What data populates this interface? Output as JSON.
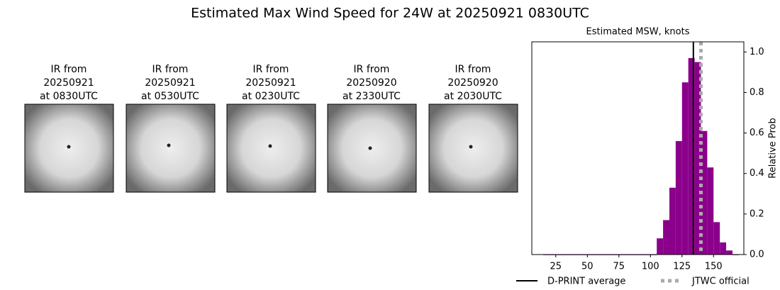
{
  "title": "Estimated Max Wind Speed for 24W at 20250921 0830UTC",
  "panels": [
    {
      "lines": [
        "IR from",
        "20250921",
        "at 0830UTC"
      ]
    },
    {
      "lines": [
        "IR from",
        "20250921",
        "at 0530UTC"
      ]
    },
    {
      "lines": [
        "IR from",
        "20250921",
        "at 0230UTC"
      ]
    },
    {
      "lines": [
        "IR from",
        "20250920",
        "at 2330UTC"
      ]
    },
    {
      "lines": [
        "IR from",
        "20250920",
        "at 2030UTC"
      ]
    }
  ],
  "chart_data": {
    "type": "histogram",
    "title": "Estimated MSW, knots",
    "y_label": "Relative Prob",
    "bins": [
      15,
      20,
      25,
      30,
      35,
      40,
      45,
      50,
      55,
      60,
      65,
      70,
      75,
      80,
      85,
      90,
      95,
      100,
      105,
      110,
      115,
      120,
      125,
      130,
      135,
      140,
      145,
      150,
      155,
      160,
      165,
      170
    ],
    "counts": [
      0,
      0,
      0,
      0,
      0,
      0,
      0,
      0,
      0,
      0,
      0,
      0,
      0,
      0,
      0,
      0,
      0,
      0,
      0.08,
      0.17,
      0.33,
      0.56,
      0.85,
      0.97,
      0.95,
      0.61,
      0.43,
      0.16,
      0.06,
      0.02,
      0
    ],
    "color": "#8b008b",
    "xlim": [
      6,
      174
    ],
    "ylim": [
      0,
      1.05
    ],
    "xticks": [
      25,
      50,
      75,
      100,
      125,
      150
    ],
    "yticks": [
      {
        "value": 0,
        "label": "0.0"
      },
      {
        "value": 0.2,
        "label": "0.2"
      },
      {
        "value": 0.4,
        "label": "0.4"
      },
      {
        "value": 0.6,
        "label": "0.6"
      },
      {
        "value": 0.8,
        "label": "0.8"
      },
      {
        "value": 1.0,
        "label": "1.0"
      }
    ],
    "lines": [
      {
        "name": "D-PRINT average",
        "value": 134,
        "color": "#000000",
        "style": "solid"
      },
      {
        "name": "JTWC official",
        "value": 140,
        "color": "#aaaaaa",
        "style": "dotted"
      }
    ]
  }
}
